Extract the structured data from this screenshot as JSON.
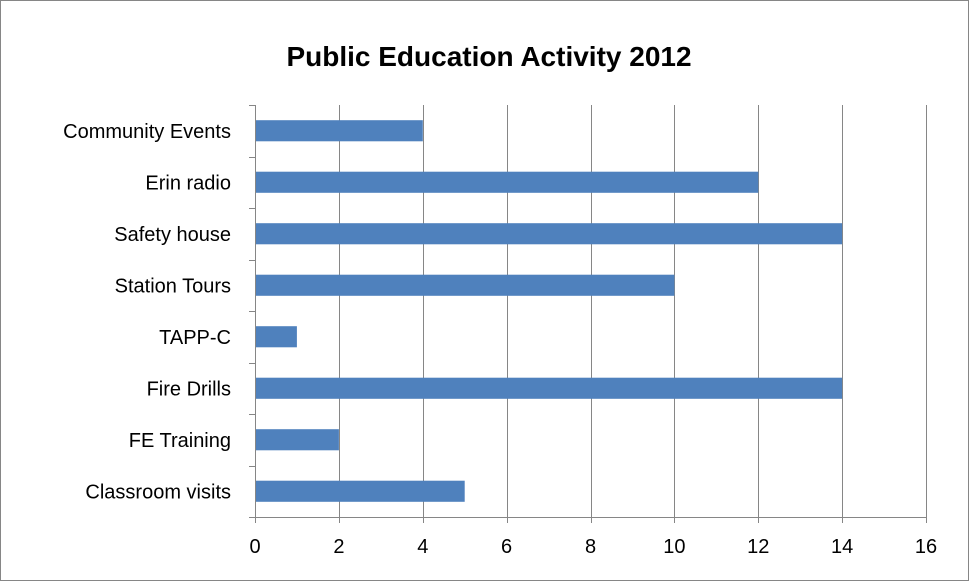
{
  "chart_data": {
    "type": "bar",
    "orientation": "horizontal",
    "title": "Public Education Activity 2012",
    "xlabel": "",
    "ylabel": "",
    "categories": [
      "Community Events",
      "Erin radio",
      "Safety house",
      "Station Tours",
      "TAPP-C",
      "Fire Drills",
      "FE Training",
      "Classroom visits"
    ],
    "values": [
      4,
      12,
      14,
      10,
      1,
      14,
      2,
      5
    ],
    "xlim": [
      0,
      16
    ],
    "x_ticks": [
      0,
      2,
      4,
      6,
      8,
      10,
      12,
      14,
      16
    ],
    "grid": "vertical",
    "legend": "none",
    "bar_color": "#4f81bd",
    "grid_color": "#868686"
  }
}
